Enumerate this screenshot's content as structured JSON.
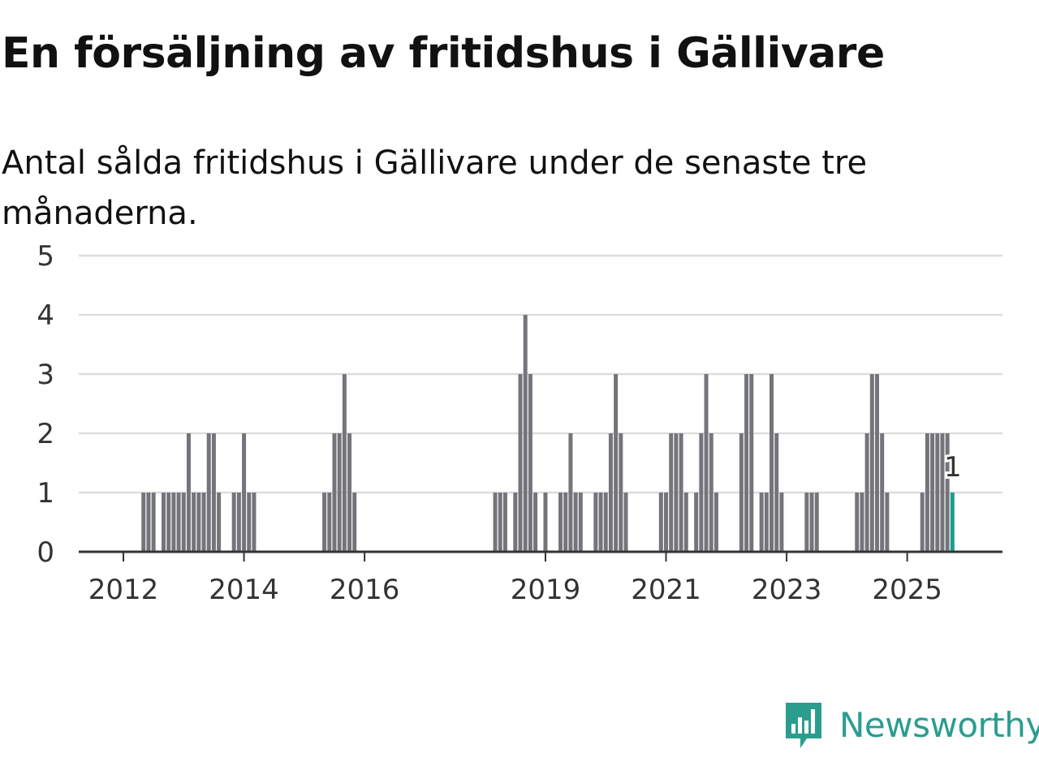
{
  "header": {
    "title": "En försäljning av fritidshus i Gällivare",
    "subtitle": "Antal sålda fritidshus i Gällivare under de senaste tre månaderna."
  },
  "brand": {
    "name": "Newsworthy",
    "color": "#2a9d8f",
    "icon": "newsworthy-chart-bubble-icon"
  },
  "colors": {
    "bar": "#75747a",
    "highlight": "#1a9e8f",
    "grid": "#dddddd",
    "axis": "#333333"
  },
  "chart_data": {
    "type": "bar",
    "x_unit": "month",
    "ylim": [
      0,
      5
    ],
    "yticks": [
      "0",
      "1",
      "2",
      "3",
      "4",
      "5"
    ],
    "xticks": [
      "2012",
      "2014",
      "2016",
      "2019",
      "2021",
      "2023",
      "2025"
    ],
    "grid": true,
    "highlight_label": "1",
    "series": [
      {
        "values": [
          {
            "x": "2012-05",
            "y": 1
          },
          {
            "x": "2012-06",
            "y": 1
          },
          {
            "x": "2012-07",
            "y": 1
          },
          {
            "x": "2012-09",
            "y": 1
          },
          {
            "x": "2012-10",
            "y": 1
          },
          {
            "x": "2012-11",
            "y": 1
          },
          {
            "x": "2012-12",
            "y": 1
          },
          {
            "x": "2013-01",
            "y": 1
          },
          {
            "x": "2013-02",
            "y": 2
          },
          {
            "x": "2013-03",
            "y": 1
          },
          {
            "x": "2013-04",
            "y": 1
          },
          {
            "x": "2013-05",
            "y": 1
          },
          {
            "x": "2013-06",
            "y": 2
          },
          {
            "x": "2013-07",
            "y": 2
          },
          {
            "x": "2013-08",
            "y": 1
          },
          {
            "x": "2013-11",
            "y": 1
          },
          {
            "x": "2013-12",
            "y": 1
          },
          {
            "x": "2014-01",
            "y": 2
          },
          {
            "x": "2014-02",
            "y": 1
          },
          {
            "x": "2014-03",
            "y": 1
          },
          {
            "x": "2015-05",
            "y": 1
          },
          {
            "x": "2015-06",
            "y": 1
          },
          {
            "x": "2015-07",
            "y": 2
          },
          {
            "x": "2015-08",
            "y": 2
          },
          {
            "x": "2015-09",
            "y": 3
          },
          {
            "x": "2015-10",
            "y": 2
          },
          {
            "x": "2015-11",
            "y": 1
          },
          {
            "x": "2018-03",
            "y": 1
          },
          {
            "x": "2018-04",
            "y": 1
          },
          {
            "x": "2018-05",
            "y": 1
          },
          {
            "x": "2018-07",
            "y": 1
          },
          {
            "x": "2018-08",
            "y": 3
          },
          {
            "x": "2018-09",
            "y": 4
          },
          {
            "x": "2018-10",
            "y": 3
          },
          {
            "x": "2018-11",
            "y": 1
          },
          {
            "x": "2019-01",
            "y": 1
          },
          {
            "x": "2019-04",
            "y": 1
          },
          {
            "x": "2019-05",
            "y": 1
          },
          {
            "x": "2019-06",
            "y": 2
          },
          {
            "x": "2019-07",
            "y": 1
          },
          {
            "x": "2019-08",
            "y": 1
          },
          {
            "x": "2019-11",
            "y": 1
          },
          {
            "x": "2019-12",
            "y": 1
          },
          {
            "x": "2020-01",
            "y": 1
          },
          {
            "x": "2020-02",
            "y": 2
          },
          {
            "x": "2020-03",
            "y": 3
          },
          {
            "x": "2020-04",
            "y": 2
          },
          {
            "x": "2020-05",
            "y": 1
          },
          {
            "x": "2020-12",
            "y": 1
          },
          {
            "x": "2021-01",
            "y": 1
          },
          {
            "x": "2021-02",
            "y": 2
          },
          {
            "x": "2021-03",
            "y": 2
          },
          {
            "x": "2021-04",
            "y": 2
          },
          {
            "x": "2021-05",
            "y": 1
          },
          {
            "x": "2021-07",
            "y": 1
          },
          {
            "x": "2021-08",
            "y": 2
          },
          {
            "x": "2021-09",
            "y": 3
          },
          {
            "x": "2021-10",
            "y": 2
          },
          {
            "x": "2021-11",
            "y": 1
          },
          {
            "x": "2022-04",
            "y": 2
          },
          {
            "x": "2022-05",
            "y": 3
          },
          {
            "x": "2022-06",
            "y": 3
          },
          {
            "x": "2022-08",
            "y": 1
          },
          {
            "x": "2022-09",
            "y": 1
          },
          {
            "x": "2022-10",
            "y": 3
          },
          {
            "x": "2022-11",
            "y": 2
          },
          {
            "x": "2022-12",
            "y": 1
          },
          {
            "x": "2023-05",
            "y": 1
          },
          {
            "x": "2023-06",
            "y": 1
          },
          {
            "x": "2023-07",
            "y": 1
          },
          {
            "x": "2024-03",
            "y": 1
          },
          {
            "x": "2024-04",
            "y": 1
          },
          {
            "x": "2024-05",
            "y": 2
          },
          {
            "x": "2024-06",
            "y": 3
          },
          {
            "x": "2024-07",
            "y": 3
          },
          {
            "x": "2024-08",
            "y": 2
          },
          {
            "x": "2024-09",
            "y": 1
          },
          {
            "x": "2025-04",
            "y": 1
          },
          {
            "x": "2025-05",
            "y": 2
          },
          {
            "x": "2025-06",
            "y": 2
          },
          {
            "x": "2025-07",
            "y": 2
          },
          {
            "x": "2025-08",
            "y": 2
          },
          {
            "x": "2025-09",
            "y": 2
          },
          {
            "x": "2025-10",
            "y": 1,
            "highlight": true
          }
        ]
      }
    ]
  }
}
